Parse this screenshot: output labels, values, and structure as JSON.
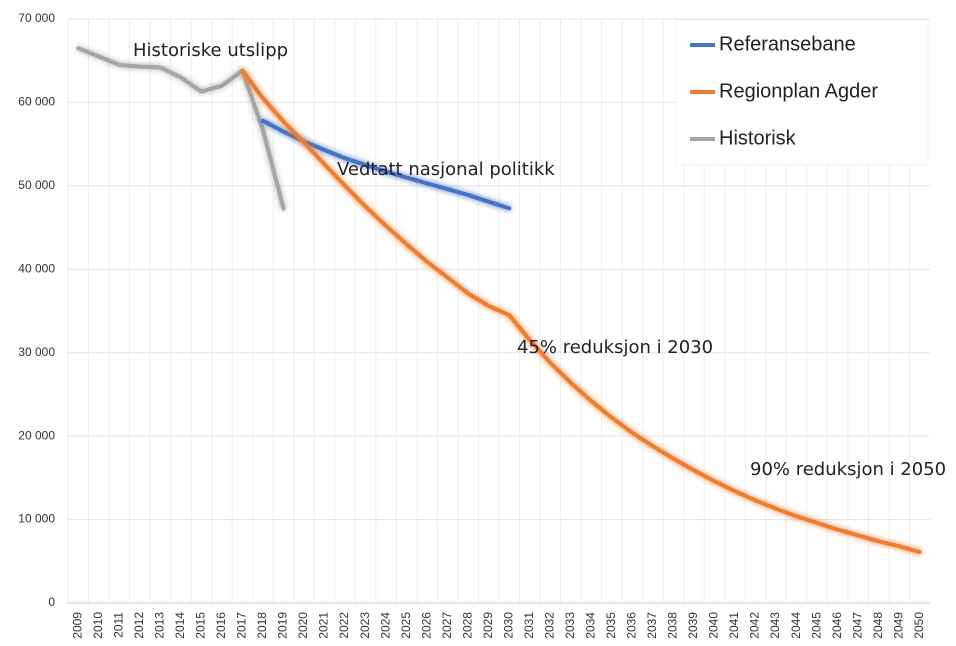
{
  "chart_data": {
    "type": "line",
    "annotations": [
      "Historiske utslipp",
      "Vedtatt nasjonal politikk",
      "45% reduksjon i 2030",
      "90% reduksjon i 2050"
    ],
    "categories": [
      "2009",
      "2010",
      "2011",
      "2012",
      "2013",
      "2014",
      "2015",
      "2016",
      "2017",
      "2018",
      "2019",
      "2020",
      "2021",
      "2022",
      "2023",
      "2024",
      "2025",
      "2026",
      "2027",
      "2028",
      "2029",
      "2030",
      "2031",
      "2032",
      "2033",
      "2034",
      "2035",
      "2036",
      "2037",
      "2038",
      "2039",
      "2040",
      "2041",
      "2042",
      "2043",
      "2044",
      "2045",
      "2046",
      "2047",
      "2048",
      "2049",
      "2050"
    ],
    "series": [
      {
        "name": "Referansebane",
        "color": "#4472c4",
        "values": [
          null,
          null,
          null,
          null,
          null,
          null,
          null,
          null,
          null,
          57800,
          56500,
          55300,
          54300,
          53300,
          52500,
          51700,
          51000,
          50300,
          49600,
          48900,
          48100,
          47300,
          null,
          null,
          null,
          null,
          null,
          null,
          null,
          null,
          null,
          null,
          null,
          null,
          null,
          null,
          null,
          null,
          null,
          null,
          null,
          null
        ]
      },
      {
        "name": "Regionplan Agder",
        "color": "#ed7d31",
        "values": [
          null,
          null,
          null,
          null,
          null,
          null,
          null,
          null,
          63800,
          60500,
          57700,
          55200,
          52600,
          50000,
          47500,
          45200,
          43000,
          40900,
          39000,
          37100,
          35600,
          34500,
          31500,
          28800,
          26400,
          24200,
          22200,
          20400,
          18800,
          17300,
          15900,
          14600,
          13400,
          12300,
          11300,
          10400,
          9600,
          8800,
          8100,
          7400,
          6800,
          6100
        ]
      },
      {
        "name": "Historisk",
        "color": "#a5a5a5",
        "values": [
          66500,
          65500,
          64500,
          64300,
          64200,
          63000,
          61300,
          62000,
          63800,
          56700,
          47300,
          null,
          null,
          null,
          null,
          null,
          null,
          null,
          null,
          null,
          null,
          null,
          null,
          null,
          null,
          null,
          null,
          null,
          null,
          null,
          null,
          null,
          null,
          null,
          null,
          null,
          null,
          null,
          null,
          null,
          null,
          null
        ]
      }
    ],
    "ylim": [
      0,
      70000
    ],
    "yticks": [
      0,
      {
        "value": 10000,
        "label": "10 000"
      },
      {
        "value": 20000,
        "label": "20 000"
      },
      {
        "value": 30000,
        "label": "30 000"
      },
      {
        "value": 40000,
        "label": "40 000"
      },
      {
        "value": 50000,
        "label": "50 000"
      },
      {
        "value": 60000,
        "label": "60 000"
      },
      {
        "value": 70000,
        "label": "70 000"
      }
    ],
    "grid": true
  }
}
